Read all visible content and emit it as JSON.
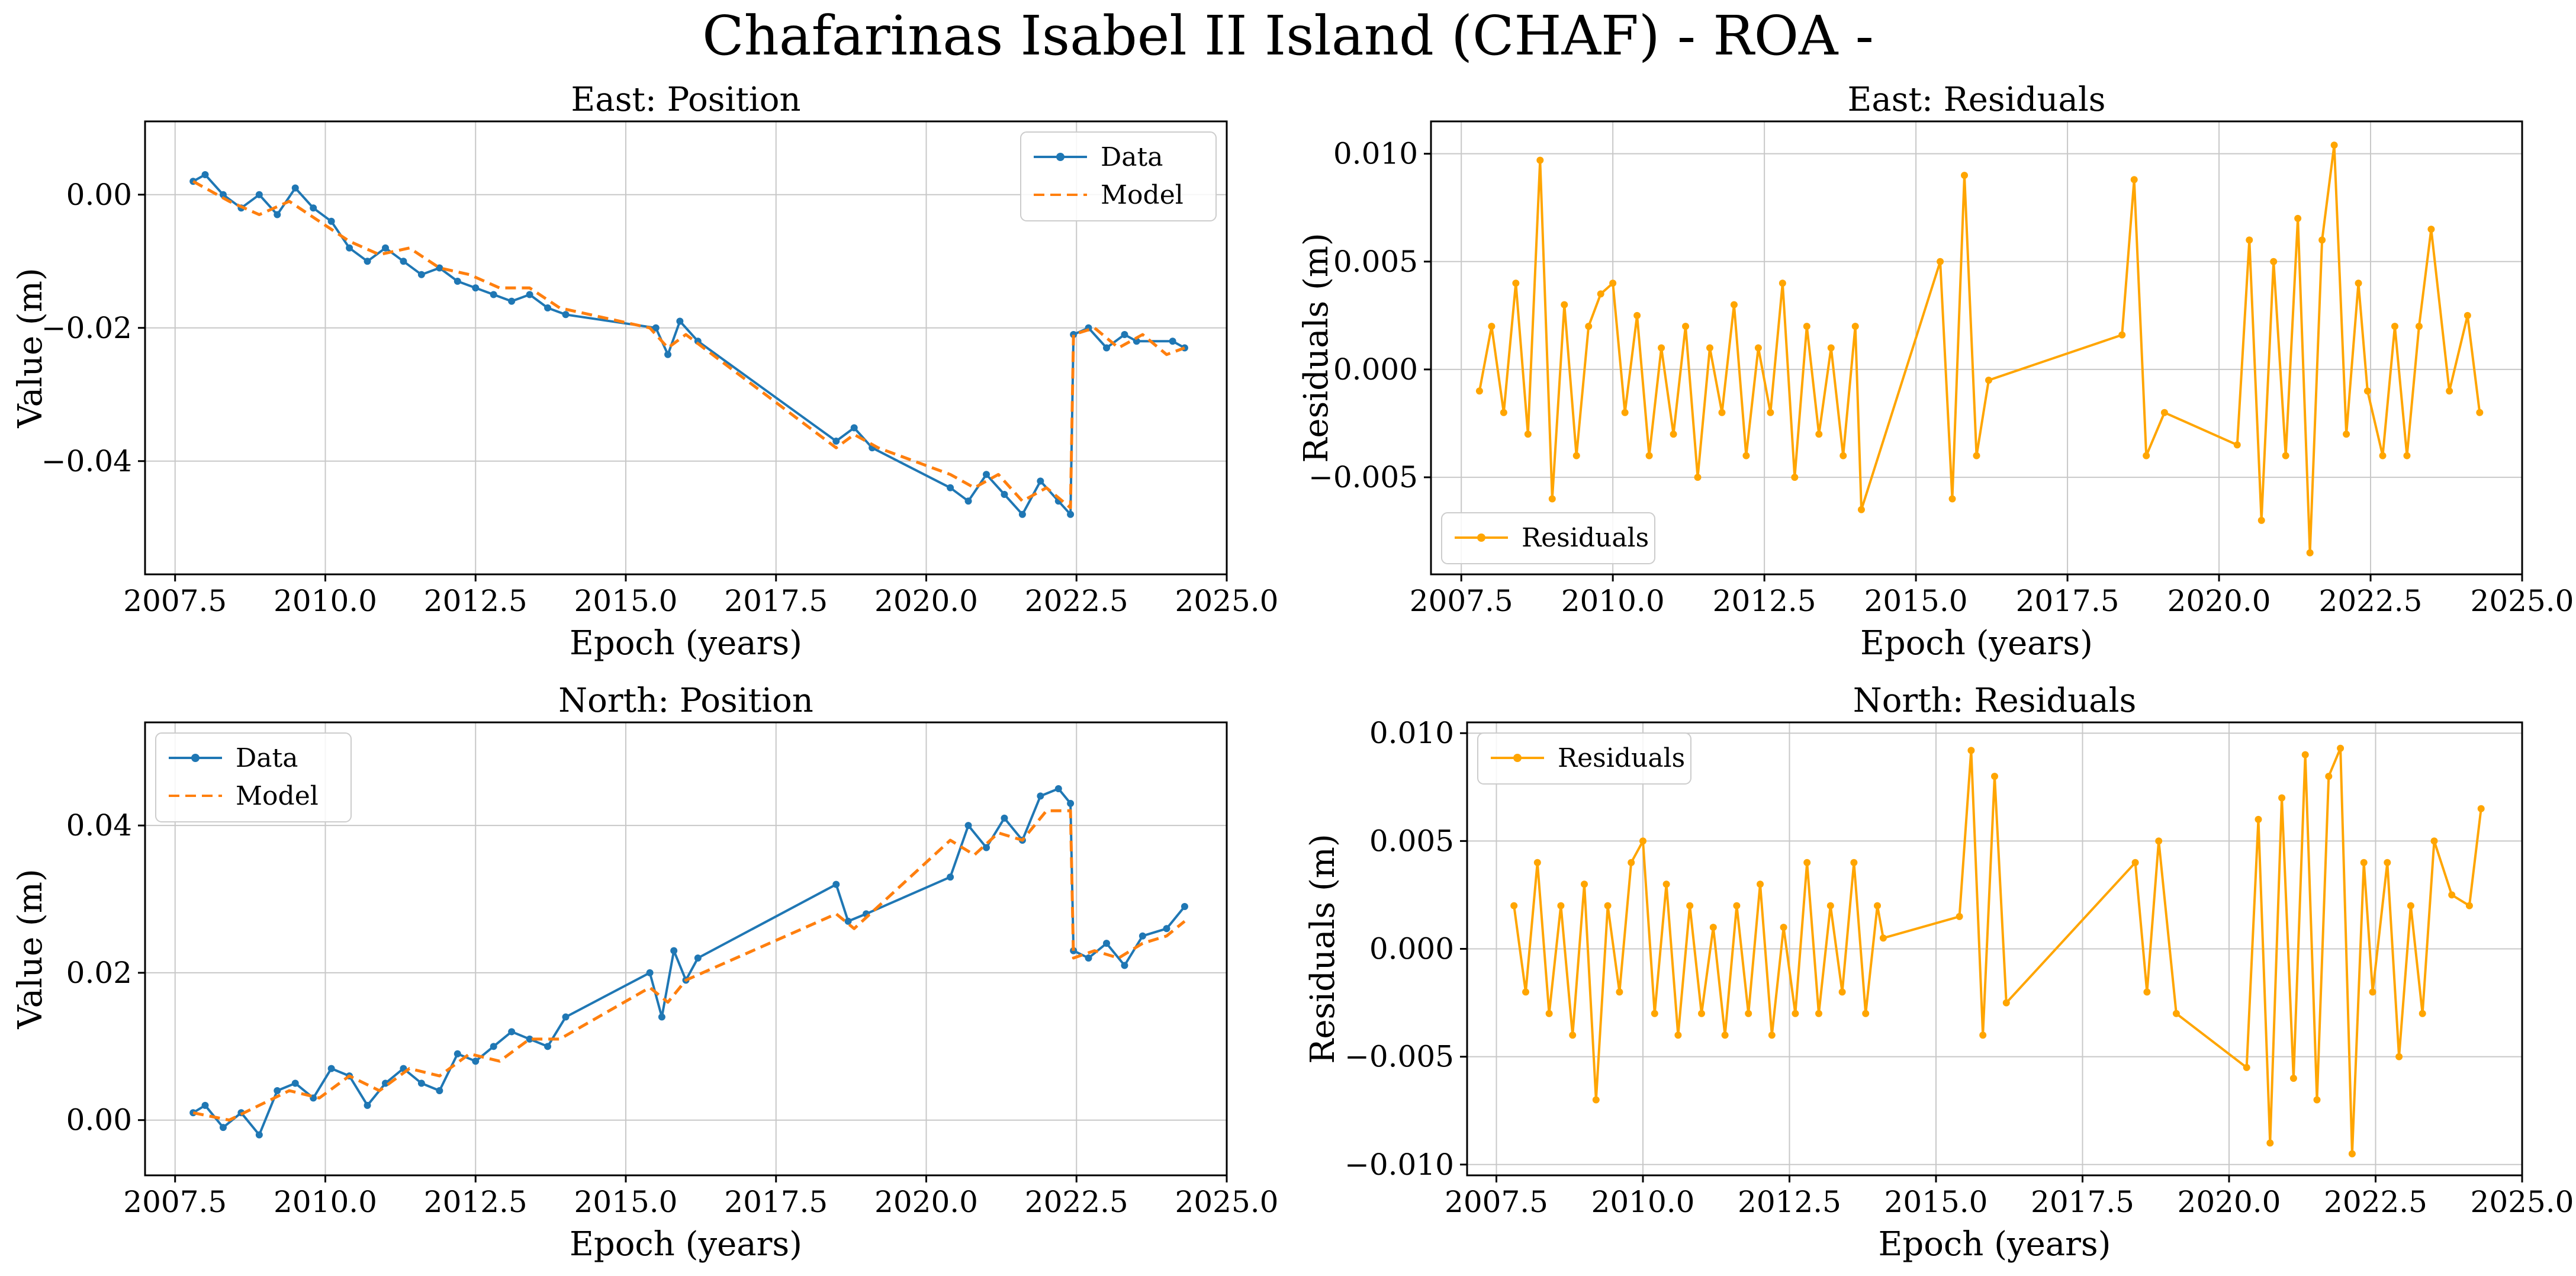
{
  "figure": {
    "title": "Chafarinas Isabel II Island (CHAF) - ROA -",
    "colors": {
      "data": "#1f77b4",
      "model": "#ff7f0e",
      "residuals": "#ffa500",
      "grid": "#c8c8c8"
    }
  },
  "chart_data": [
    {
      "id": "east-position",
      "type": "line",
      "title": "East: Position",
      "xlabel": "Epoch (years)",
      "ylabel": "Value (m)",
      "xlim": [
        2007.0,
        2025.0
      ],
      "ylim": [
        -0.057,
        0.011
      ],
      "xticks": [
        2007.5,
        2010.0,
        2012.5,
        2015.0,
        2017.5,
        2020.0,
        2022.5,
        2025.0
      ],
      "xtick_labels": [
        "2007.5",
        "2010.0",
        "2012.5",
        "2015.0",
        "2017.5",
        "2020.0",
        "2022.5",
        "2025.0"
      ],
      "yticks": [
        -0.04,
        -0.02,
        0.0
      ],
      "ytick_labels": [
        "−0.04",
        "−0.02",
        "0.00"
      ],
      "grid": true,
      "legend": {
        "position": "top-right",
        "entries": [
          "Data",
          "Model"
        ]
      },
      "series": [
        {
          "name": "Data",
          "style": "line-markers",
          "x": [
            2007.8,
            2008.0,
            2008.3,
            2008.6,
            2008.9,
            2009.2,
            2009.5,
            2009.8,
            2010.1,
            2010.4,
            2010.7,
            2011.0,
            2011.3,
            2011.6,
            2011.9,
            2012.2,
            2012.5,
            2012.8,
            2013.1,
            2013.4,
            2013.7,
            2014.0,
            2015.5,
            2015.7,
            2015.9,
            2016.2,
            2018.5,
            2018.8,
            2019.1,
            2020.4,
            2020.7,
            2021.0,
            2021.3,
            2021.6,
            2021.9,
            2022.2,
            2022.4,
            2022.45,
            2022.7,
            2023.0,
            2023.3,
            2023.5,
            2024.1,
            2024.3
          ],
          "y": [
            0.002,
            0.003,
            0.0,
            -0.002,
            0.0,
            -0.003,
            0.001,
            -0.002,
            -0.004,
            -0.008,
            -0.01,
            -0.008,
            -0.01,
            -0.012,
            -0.011,
            -0.013,
            -0.014,
            -0.015,
            -0.016,
            -0.015,
            -0.017,
            -0.018,
            -0.02,
            -0.024,
            -0.019,
            -0.022,
            -0.037,
            -0.035,
            -0.038,
            -0.044,
            -0.046,
            -0.042,
            -0.045,
            -0.048,
            -0.043,
            -0.046,
            -0.048,
            -0.021,
            -0.02,
            -0.023,
            -0.021,
            -0.022,
            -0.022,
            -0.023
          ]
        },
        {
          "name": "Model",
          "style": "dashed",
          "x": [
            2007.8,
            2008.4,
            2008.9,
            2009.4,
            2009.9,
            2010.4,
            2010.9,
            2011.4,
            2011.9,
            2012.4,
            2012.9,
            2013.4,
            2013.9,
            2015.4,
            2015.7,
            2016.0,
            2018.5,
            2018.8,
            2019.2,
            2020.4,
            2020.8,
            2021.2,
            2021.6,
            2022.0,
            2022.4,
            2022.45,
            2022.8,
            2023.2,
            2023.6,
            2024.0,
            2024.3
          ],
          "y": [
            0.002,
            -0.001,
            -0.003,
            -0.001,
            -0.004,
            -0.007,
            -0.009,
            -0.008,
            -0.011,
            -0.012,
            -0.014,
            -0.014,
            -0.017,
            -0.02,
            -0.023,
            -0.021,
            -0.038,
            -0.036,
            -0.038,
            -0.042,
            -0.044,
            -0.042,
            -0.046,
            -0.044,
            -0.047,
            -0.021,
            -0.02,
            -0.023,
            -0.021,
            -0.024,
            -0.023
          ]
        }
      ]
    },
    {
      "id": "east-residuals",
      "type": "line",
      "title": "East: Residuals",
      "xlabel": "Epoch (years)",
      "ylabel": "Residuals (m)",
      "xlim": [
        2007.0,
        2025.0
      ],
      "ylim": [
        -0.0095,
        0.0115
      ],
      "xticks": [
        2007.5,
        2010.0,
        2012.5,
        2015.0,
        2017.5,
        2020.0,
        2022.5,
        2025.0
      ],
      "xtick_labels": [
        "2007.5",
        "2010.0",
        "2012.5",
        "2015.0",
        "2017.5",
        "2020.0",
        "2022.5",
        "2025.0"
      ],
      "yticks": [
        -0.005,
        0.0,
        0.005,
        0.01
      ],
      "ytick_labels": [
        "−0.005",
        "0.000",
        "0.005",
        "0.010"
      ],
      "grid": true,
      "legend": {
        "position": "bottom-left",
        "entries": [
          "Residuals"
        ]
      },
      "series": [
        {
          "name": "Residuals",
          "style": "line-markers",
          "x": [
            2007.8,
            2008.0,
            2008.2,
            2008.4,
            2008.6,
            2008.8,
            2009.0,
            2009.2,
            2009.4,
            2009.6,
            2009.8,
            2010.0,
            2010.2,
            2010.4,
            2010.6,
            2010.8,
            2011.0,
            2011.2,
            2011.4,
            2011.6,
            2011.8,
            2012.0,
            2012.2,
            2012.4,
            2012.6,
            2012.8,
            2013.0,
            2013.2,
            2013.4,
            2013.6,
            2013.8,
            2014.0,
            2014.1,
            2015.4,
            2015.6,
            2015.8,
            2016.0,
            2016.2,
            2018.4,
            2018.6,
            2018.8,
            2019.1,
            2020.3,
            2020.5,
            2020.7,
            2020.9,
            2021.1,
            2021.3,
            2021.5,
            2021.7,
            2021.9,
            2022.1,
            2022.3,
            2022.45,
            2022.7,
            2022.9,
            2023.1,
            2023.3,
            2023.5,
            2023.8,
            2024.1,
            2024.3
          ],
          "y": [
            -0.001,
            0.002,
            -0.002,
            0.004,
            -0.003,
            0.0097,
            -0.006,
            0.003,
            -0.004,
            0.002,
            0.0035,
            0.004,
            -0.002,
            0.0025,
            -0.004,
            0.001,
            -0.003,
            0.002,
            -0.005,
            0.001,
            -0.002,
            0.003,
            -0.004,
            0.001,
            -0.002,
            0.004,
            -0.005,
            0.002,
            -0.003,
            0.001,
            -0.004,
            0.002,
            -0.0065,
            0.005,
            -0.006,
            0.009,
            -0.004,
            -0.0005,
            0.0016,
            0.0088,
            -0.004,
            -0.002,
            -0.0035,
            0.006,
            -0.007,
            0.005,
            -0.004,
            0.007,
            -0.0085,
            0.006,
            0.0104,
            -0.003,
            0.004,
            -0.001,
            -0.004,
            0.002,
            -0.004,
            0.002,
            0.0065,
            -0.001,
            0.0025,
            -0.002
          ]
        }
      ]
    },
    {
      "id": "north-position",
      "type": "line",
      "title": "North: Position",
      "xlabel": "Epoch (years)",
      "ylabel": "Value (m)",
      "xlim": [
        2007.0,
        2025.0
      ],
      "ylim": [
        -0.0075,
        0.054
      ],
      "xticks": [
        2007.5,
        2010.0,
        2012.5,
        2015.0,
        2017.5,
        2020.0,
        2022.5,
        2025.0
      ],
      "xtick_labels": [
        "2007.5",
        "2010.0",
        "2012.5",
        "2015.0",
        "2017.5",
        "2020.0",
        "2022.5",
        "2025.0"
      ],
      "yticks": [
        0.0,
        0.02,
        0.04
      ],
      "ytick_labels": [
        "0.00",
        "0.02",
        "0.04"
      ],
      "grid": true,
      "legend": {
        "position": "top-left",
        "entries": [
          "Data",
          "Model"
        ]
      },
      "series": [
        {
          "name": "Data",
          "style": "line-markers",
          "x": [
            2007.8,
            2008.0,
            2008.3,
            2008.6,
            2008.9,
            2009.2,
            2009.5,
            2009.8,
            2010.1,
            2010.4,
            2010.7,
            2011.0,
            2011.3,
            2011.6,
            2011.9,
            2012.2,
            2012.5,
            2012.8,
            2013.1,
            2013.4,
            2013.7,
            2014.0,
            2015.4,
            2015.6,
            2015.8,
            2016.0,
            2016.2,
            2018.5,
            2018.7,
            2019.0,
            2020.4,
            2020.7,
            2021.0,
            2021.3,
            2021.6,
            2021.9,
            2022.2,
            2022.4,
            2022.45,
            2022.7,
            2023.0,
            2023.3,
            2023.6,
            2024.0,
            2024.3
          ],
          "y": [
            0.001,
            0.002,
            -0.001,
            0.001,
            -0.002,
            0.004,
            0.005,
            0.003,
            0.007,
            0.006,
            0.002,
            0.005,
            0.007,
            0.005,
            0.004,
            0.009,
            0.008,
            0.01,
            0.012,
            0.011,
            0.01,
            0.014,
            0.02,
            0.014,
            0.023,
            0.019,
            0.022,
            0.032,
            0.027,
            0.028,
            0.033,
            0.04,
            0.037,
            0.041,
            0.038,
            0.044,
            0.045,
            0.043,
            0.023,
            0.022,
            0.024,
            0.021,
            0.025,
            0.026,
            0.029
          ]
        },
        {
          "name": "Model",
          "style": "dashed",
          "x": [
            2007.8,
            2008.4,
            2008.9,
            2009.4,
            2009.9,
            2010.4,
            2010.9,
            2011.4,
            2011.9,
            2012.4,
            2012.9,
            2013.4,
            2013.9,
            2015.4,
            2015.7,
            2016.0,
            2018.5,
            2018.8,
            2019.2,
            2020.4,
            2020.8,
            2021.2,
            2021.6,
            2022.0,
            2022.4,
            2022.45,
            2022.8,
            2023.2,
            2023.6,
            2024.0,
            2024.3
          ],
          "y": [
            0.001,
            0.0,
            0.002,
            0.004,
            0.003,
            0.006,
            0.004,
            0.007,
            0.006,
            0.009,
            0.008,
            0.011,
            0.011,
            0.018,
            0.016,
            0.019,
            0.028,
            0.026,
            0.029,
            0.038,
            0.036,
            0.039,
            0.038,
            0.042,
            0.042,
            0.022,
            0.023,
            0.022,
            0.024,
            0.025,
            0.027
          ]
        }
      ]
    },
    {
      "id": "north-residuals",
      "type": "line",
      "title": "North: Residuals",
      "xlabel": "Epoch (years)",
      "ylabel": "Residuals (m)",
      "xlim": [
        2007.0,
        2025.0
      ],
      "ylim": [
        -0.0105,
        0.0105
      ],
      "xticks": [
        2007.5,
        2010.0,
        2012.5,
        2015.0,
        2017.5,
        2020.0,
        2022.5,
        2025.0
      ],
      "xtick_labels": [
        "2007.5",
        "2010.0",
        "2012.5",
        "2015.0",
        "2017.5",
        "2020.0",
        "2022.5",
        "2025.0"
      ],
      "yticks": [
        -0.01,
        -0.005,
        0.0,
        0.005,
        0.01
      ],
      "ytick_labels": [
        "−0.010",
        "−0.005",
        "0.000",
        "0.005",
        "0.010"
      ],
      "grid": true,
      "legend": {
        "position": "top-left",
        "entries": [
          "Residuals"
        ]
      },
      "series": [
        {
          "name": "Residuals",
          "style": "line-markers",
          "x": [
            2007.8,
            2008.0,
            2008.2,
            2008.4,
            2008.6,
            2008.8,
            2009.0,
            2009.2,
            2009.4,
            2009.6,
            2009.8,
            2010.0,
            2010.2,
            2010.4,
            2010.6,
            2010.8,
            2011.0,
            2011.2,
            2011.4,
            2011.6,
            2011.8,
            2012.0,
            2012.2,
            2012.4,
            2012.6,
            2012.8,
            2013.0,
            2013.2,
            2013.4,
            2013.6,
            2013.8,
            2014.0,
            2014.1,
            2015.4,
            2015.6,
            2015.8,
            2016.0,
            2016.2,
            2018.4,
            2018.6,
            2018.8,
            2019.1,
            2020.3,
            2020.5,
            2020.7,
            2020.9,
            2021.1,
            2021.3,
            2021.5,
            2021.7,
            2021.9,
            2022.1,
            2022.3,
            2022.45,
            2022.7,
            2022.9,
            2023.1,
            2023.3,
            2023.5,
            2023.8,
            2024.1,
            2024.3
          ],
          "y": [
            0.002,
            -0.002,
            0.004,
            -0.003,
            0.002,
            -0.004,
            0.003,
            -0.007,
            0.002,
            -0.002,
            0.004,
            0.005,
            -0.003,
            0.003,
            -0.004,
            0.002,
            -0.003,
            0.001,
            -0.004,
            0.002,
            -0.003,
            0.003,
            -0.004,
            0.001,
            -0.003,
            0.004,
            -0.003,
            0.002,
            -0.002,
            0.004,
            -0.003,
            0.002,
            0.0005,
            0.0015,
            0.0092,
            -0.004,
            0.008,
            -0.0025,
            0.004,
            -0.002,
            0.005,
            -0.003,
            -0.0055,
            0.006,
            -0.009,
            0.007,
            -0.006,
            0.009,
            -0.007,
            0.008,
            0.0093,
            -0.0095,
            0.004,
            -0.002,
            0.004,
            -0.005,
            0.002,
            -0.003,
            0.005,
            0.0025,
            0.002,
            0.0065
          ]
        }
      ]
    }
  ]
}
